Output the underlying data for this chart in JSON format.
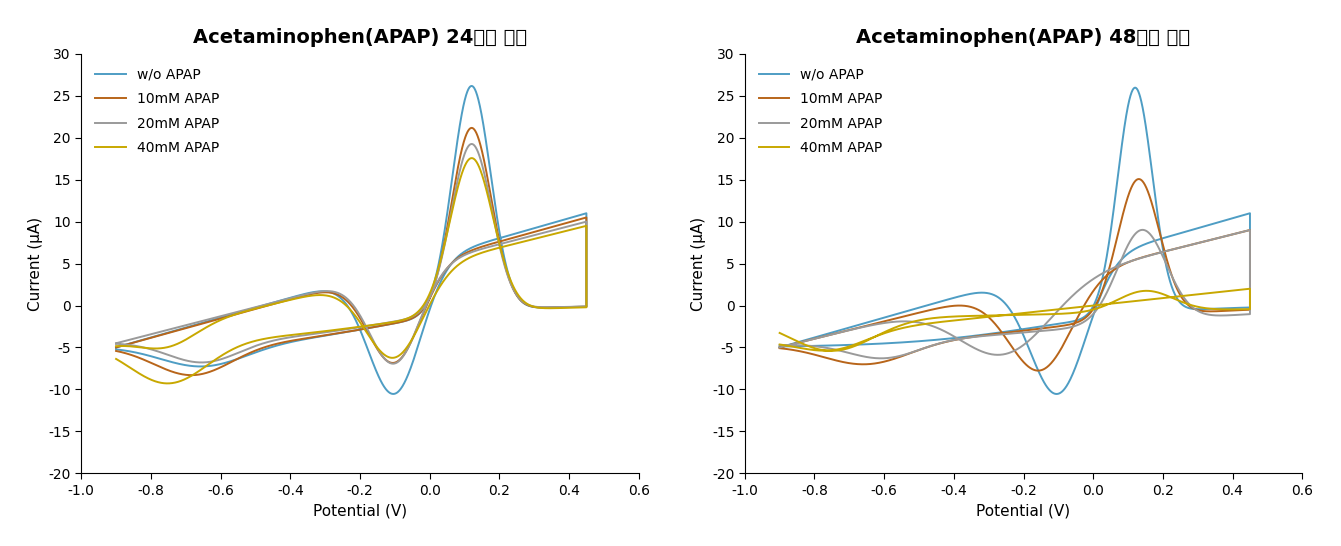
{
  "title_left": "Acetaminophen(APAP) 24시간 처리",
  "title_right": "Acetaminophen(APAP) 48시간 처리",
  "xlabel": "Potential (V)",
  "ylabel": "Current (μA)",
  "xlim": [
    -1.0,
    0.6
  ],
  "ylim": [
    -20,
    30
  ],
  "xticks": [
    -1.0,
    -0.8,
    -0.6,
    -0.4,
    -0.2,
    0.0,
    0.2,
    0.4,
    0.6
  ],
  "yticks": [
    -20,
    -15,
    -10,
    -5,
    0,
    5,
    10,
    15,
    20,
    25,
    30
  ],
  "colors": {
    "wo": "#4e9dc4",
    "10mM": "#b8651a",
    "20mM": "#9a9a9a",
    "40mM": "#c8a800"
  },
  "legend_labels": [
    "w/o APAP",
    "10mM APAP",
    "20mM APAP",
    "40mM APAP"
  ],
  "background_color": "#ffffff",
  "title_fontsize": 14,
  "label_fontsize": 11,
  "tick_fontsize": 10,
  "legend_fontsize": 10
}
